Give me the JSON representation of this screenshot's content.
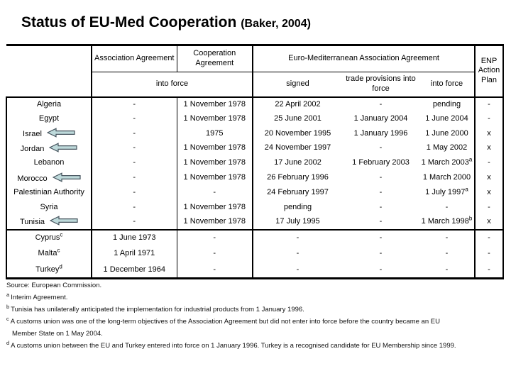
{
  "title": {
    "main": "Status of EU-Med Cooperation",
    "citation": "(Baker, 2004)"
  },
  "table": {
    "header": {
      "col_association": "Association Agreement",
      "col_cooperation": "Cooperation Agreement",
      "col_euromed": "Euro-Mediterranean Association Agreement",
      "col_enp": "ENP Action Plan",
      "sub_into_force_span": "into force",
      "sub_signed": "signed",
      "sub_trade": "trade provisions into force",
      "sub_into_force": "into force"
    },
    "rows": [
      {
        "country": "Algeria",
        "arrow": false,
        "cells": [
          "-",
          "1 November 1978",
          "22 April 2002",
          "-",
          "pending",
          "-"
        ]
      },
      {
        "country": "Egypt",
        "arrow": false,
        "cells": [
          "-",
          "1 November 1978",
          "25 June 2001",
          "1 January 2004",
          "1 June 2004",
          "-"
        ]
      },
      {
        "country": "Israel",
        "arrow": true,
        "cells": [
          "-",
          "1975",
          "20 November 1995",
          "1 January 1996",
          "1 June 2000",
          "x"
        ]
      },
      {
        "country": "Jordan",
        "arrow": true,
        "cells": [
          "-",
          "1 November 1978",
          "24 November 1997",
          "-",
          "1 May 2002",
          "x"
        ]
      },
      {
        "country": "Lebanon",
        "arrow": false,
        "cells": [
          "-",
          "1 November 1978",
          "17 June 2002",
          "1 February 2003",
          "1 March 2003^a",
          "-"
        ]
      },
      {
        "country": "Morocco",
        "arrow": true,
        "cells": [
          "-",
          "1 November 1978",
          "26 February 1996",
          "-",
          "1 March 2000",
          "x"
        ]
      },
      {
        "country": "Palestinian Authority",
        "arrow": false,
        "cells": [
          "-",
          "-",
          "24 February 1997",
          "-",
          "1 July 1997^a",
          "x"
        ]
      },
      {
        "country": "Syria",
        "arrow": false,
        "cells": [
          "-",
          "1 November 1978",
          "pending",
          "-",
          "-",
          "-"
        ]
      },
      {
        "country": "Tunisia",
        "arrow": true,
        "cells": [
          "-",
          "1 November 1978",
          "17 July 1995",
          "-",
          "1 March 1998^b",
          "x"
        ]
      }
    ],
    "rows_accession": [
      {
        "country": "Cyprus^c",
        "arrow": false,
        "cells": [
          "1 June 1973",
          "-",
          "-",
          "-",
          "-",
          "-"
        ]
      },
      {
        "country": "Malta^c",
        "arrow": false,
        "cells": [
          "1 April 1971",
          "-",
          "-",
          "-",
          "-",
          "-"
        ]
      },
      {
        "country": "Turkey^d",
        "arrow": false,
        "cells": [
          "1 December 1964",
          "-",
          "-",
          "-",
          "-",
          "-"
        ]
      }
    ]
  },
  "footnotes": [
    {
      "sup": "",
      "text": "Source: European Commission."
    },
    {
      "sup": "a",
      "text": "Interim Agreement."
    },
    {
      "sup": "b",
      "text": "Tunisia has unilaterally anticipated the implementation for industrial products from 1 January 1996."
    },
    {
      "sup": "c",
      "text": "A customs union was one of the long-term objectives of the Association Agreement but did not enter into force before the country became an EU Member State on 1 May 2004."
    },
    {
      "sup": "d",
      "text": "A customs union between the EU and Turkey entered into force on 1 January 1996. Turkey is a recognised candidate for EU Membership since 1999."
    }
  ],
  "colors": {
    "arrow_fill": "#bedadb",
    "arrow_stroke": "#44525c"
  }
}
